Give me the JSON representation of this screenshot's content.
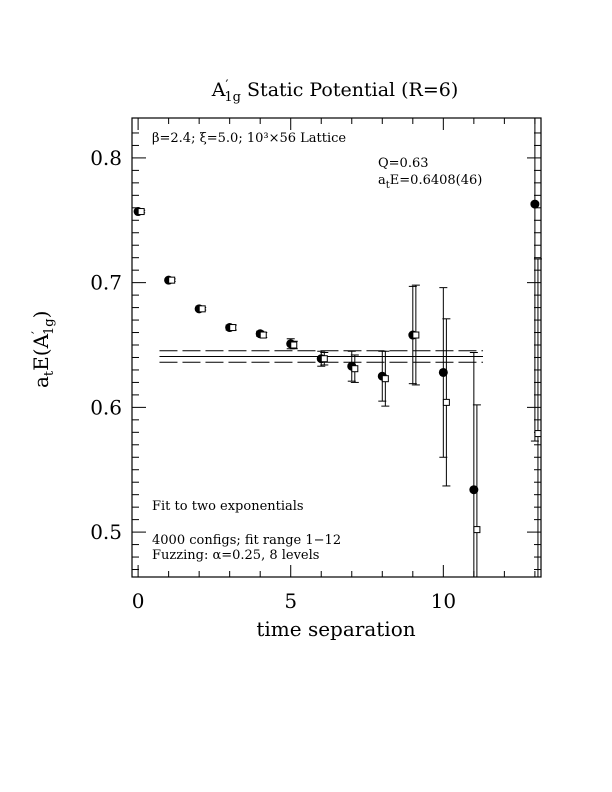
{
  "chart_data": {
    "type": "scatter",
    "title": {
      "base": "A",
      "sup": "′",
      "sub": "1g",
      "rest": " Static Potential (R=6)"
    },
    "xlabel": "time separation",
    "ylabel": {
      "prefix": "a",
      "prefix_sub": "t",
      "mid": "E(A",
      "sup": "′",
      "sub": "1g",
      "suffix": ")"
    },
    "xlim": [
      -0.2,
      13.2
    ],
    "ylim": [
      0.464,
      0.832
    ],
    "xticks": [
      0,
      5,
      10
    ],
    "xticklabels": [
      "0",
      "5",
      "10"
    ],
    "yticks": [
      0.5,
      0.6,
      0.7,
      0.8
    ],
    "yticklabels": [
      "0.5",
      "0.6",
      "0.7",
      "0.8"
    ],
    "grid": false,
    "annotations": {
      "lattice": "β=2.4; ξ=5.0; 10³×56 Lattice",
      "q": "Q=0.63",
      "energy": {
        "prefix": "a",
        "sub": "t",
        "rest": "E=0.6408(46)"
      },
      "fit_desc": "Fit to two exponentials",
      "configs": "4000 configs; fit range 1−12",
      "fuzzing": "Fuzzing: α=0.25, 8 levels"
    },
    "series": [
      {
        "marker": "filled-circle",
        "x": [
          0,
          1,
          2,
          3,
          4,
          5,
          6,
          7,
          8,
          9,
          10,
          11,
          13
        ],
        "y": [
          0.757,
          0.702,
          0.679,
          0.664,
          0.659,
          0.651,
          0.639,
          0.633,
          0.625,
          0.658,
          0.628,
          0.534,
          0.763
        ],
        "err": [
          0.001,
          0.001,
          0.001,
          0.002,
          0.002,
          0.004,
          0.006,
          0.012,
          0.02,
          0.039,
          0.068,
          0.11,
          0.19
        ]
      },
      {
        "marker": "open-square",
        "x": [
          0.1,
          1.1,
          2.1,
          3.1,
          4.1,
          5.1,
          6.1,
          7.1,
          8.1,
          9.1,
          10.1,
          11.1,
          13.1
        ],
        "y": [
          0.757,
          0.702,
          0.679,
          0.664,
          0.658,
          0.65,
          0.639,
          0.631,
          0.623,
          0.658,
          0.604,
          0.502,
          0.579
        ],
        "err": [
          0.001,
          0.001,
          0.001,
          0.002,
          0.002,
          0.003,
          0.005,
          0.011,
          0.022,
          0.04,
          0.067,
          0.1,
          0.14
        ]
      }
    ],
    "fit": {
      "x_range": [
        0.7,
        11.3
      ],
      "center": 0.6408,
      "error": 0.0046
    }
  }
}
